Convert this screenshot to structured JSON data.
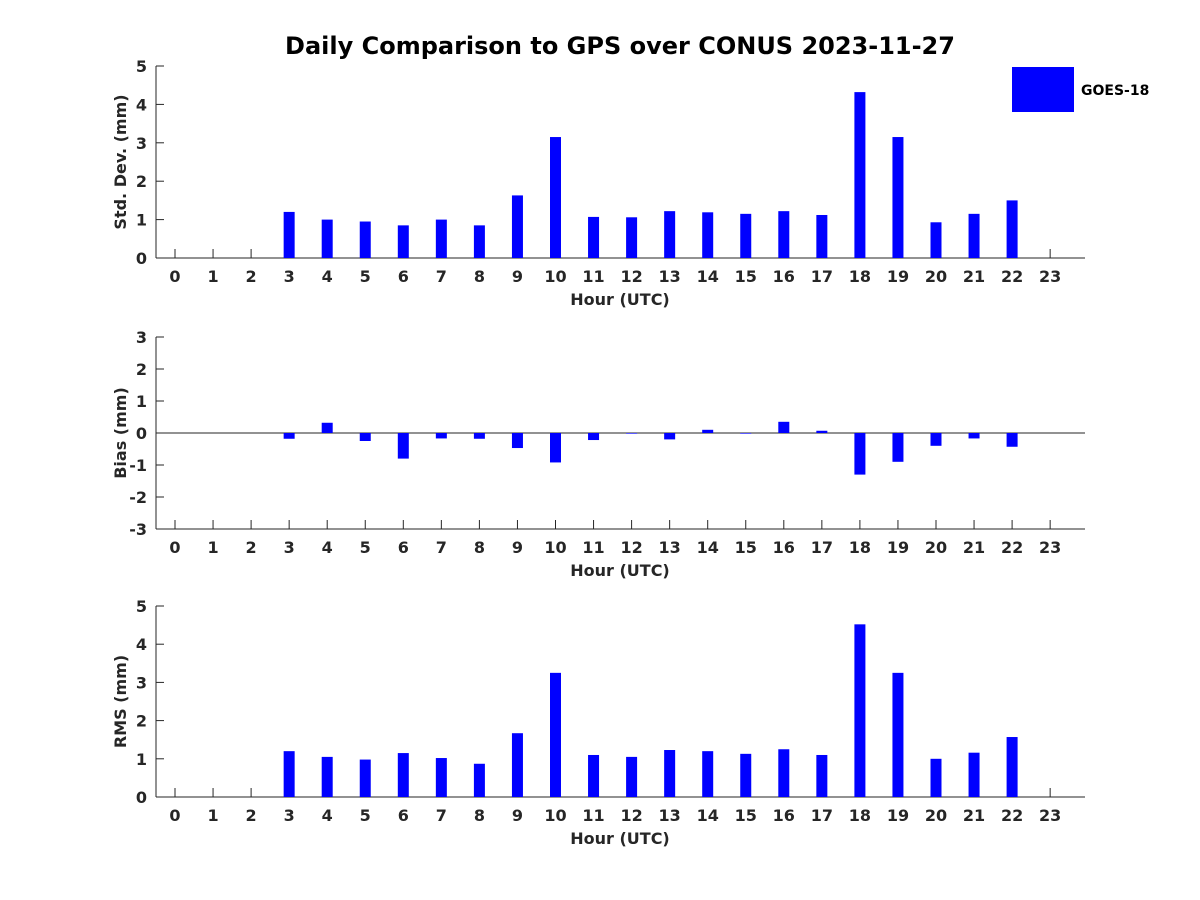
{
  "title": "Daily Comparison to GPS over CONUS 2023-11-27",
  "legend": {
    "label": "GOES-18",
    "color": "#0000ff",
    "placement": "top-right"
  },
  "chart_data": [
    {
      "type": "bar",
      "name": "std-dev",
      "xlabel": "Hour (UTC)",
      "ylabel": "Std. Dev. (mm)",
      "ylim": [
        0,
        5
      ],
      "yticks": [
        0,
        1,
        2,
        3,
        4,
        5
      ],
      "categories": [
        0,
        1,
        2,
        3,
        4,
        5,
        6,
        7,
        8,
        9,
        10,
        11,
        12,
        13,
        14,
        15,
        16,
        17,
        18,
        19,
        20,
        21,
        22,
        23
      ],
      "series": [
        {
          "name": "GOES-18",
          "values": [
            null,
            null,
            null,
            1.2,
            1.0,
            0.95,
            0.85,
            1.0,
            0.85,
            1.63,
            3.15,
            1.07,
            1.06,
            1.22,
            1.19,
            1.15,
            1.22,
            1.12,
            4.32,
            3.15,
            0.93,
            1.15,
            1.5,
            null
          ]
        }
      ]
    },
    {
      "type": "bar",
      "name": "bias",
      "xlabel": "Hour (UTC)",
      "ylabel": "Bias (mm)",
      "ylim": [
        -3,
        3
      ],
      "yticks": [
        -3,
        -2,
        -1,
        0,
        1,
        2,
        3
      ],
      "zero_line": true,
      "categories": [
        0,
        1,
        2,
        3,
        4,
        5,
        6,
        7,
        8,
        9,
        10,
        11,
        12,
        13,
        14,
        15,
        16,
        17,
        18,
        19,
        20,
        21,
        22,
        23
      ],
      "series": [
        {
          "name": "GOES-18",
          "values": [
            null,
            null,
            null,
            -0.18,
            0.32,
            -0.25,
            -0.8,
            -0.17,
            -0.18,
            -0.47,
            -0.92,
            -0.22,
            -0.02,
            -0.2,
            0.1,
            -0.02,
            0.35,
            0.07,
            -1.3,
            -0.9,
            -0.4,
            -0.17,
            -0.43,
            null
          ]
        }
      ]
    },
    {
      "type": "bar",
      "name": "rms",
      "xlabel": "Hour (UTC)",
      "ylabel": "RMS (mm)",
      "ylim": [
        0,
        5
      ],
      "yticks": [
        0,
        1,
        2,
        3,
        4,
        5
      ],
      "categories": [
        0,
        1,
        2,
        3,
        4,
        5,
        6,
        7,
        8,
        9,
        10,
        11,
        12,
        13,
        14,
        15,
        16,
        17,
        18,
        19,
        20,
        21,
        22,
        23
      ],
      "series": [
        {
          "name": "GOES-18",
          "values": [
            null,
            null,
            null,
            1.2,
            1.05,
            0.98,
            1.15,
            1.02,
            0.87,
            1.67,
            3.25,
            1.1,
            1.05,
            1.23,
            1.2,
            1.13,
            1.25,
            1.1,
            4.52,
            3.25,
            1.0,
            1.16,
            1.57,
            null
          ]
        }
      ]
    }
  ]
}
